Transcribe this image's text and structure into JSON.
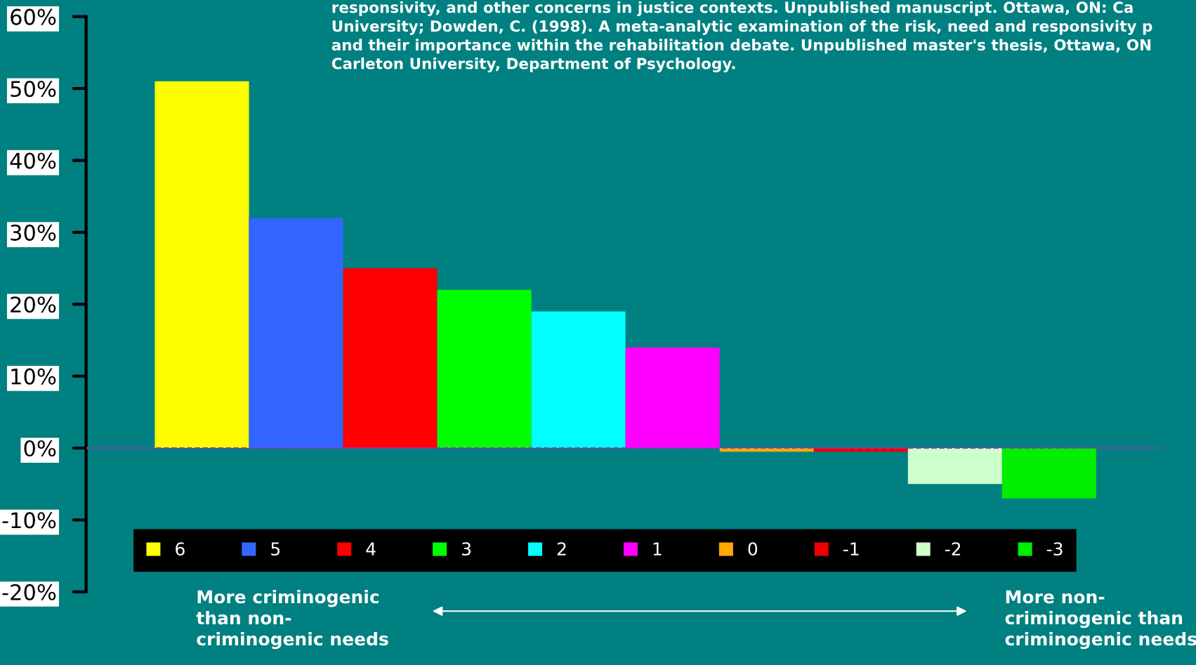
{
  "chart_data": {
    "type": "bar",
    "categories": [
      null
    ],
    "series": [
      {
        "name": "6",
        "color": "#ffff00",
        "values": [
          51
        ]
      },
      {
        "name": "5",
        "color": "#3366ff",
        "values": [
          32
        ]
      },
      {
        "name": "4",
        "color": "#ff0000",
        "values": [
          25
        ]
      },
      {
        "name": "3",
        "color": "#00ff00",
        "values": [
          22
        ]
      },
      {
        "name": "2",
        "color": "#00ffff",
        "values": [
          19
        ]
      },
      {
        "name": "1",
        "color": "#ff00ff",
        "values": [
          14
        ]
      },
      {
        "name": "0",
        "color": "#ffaa00",
        "values": [
          -0.5
        ]
      },
      {
        "name": "-1",
        "color": "#ee0000",
        "values": [
          -0.5
        ]
      },
      {
        "name": "-2",
        "color": "#ccffcc",
        "values": [
          -5
        ]
      },
      {
        "name": "-3",
        "color": "#00ee00",
        "values": [
          -7
        ]
      }
    ],
    "ylim": [
      -20,
      60
    ],
    "yticks": [
      {
        "value": -20,
        "label": "-20%"
      },
      {
        "value": -10,
        "label": "-10%"
      },
      {
        "value": 0,
        "label": "0%"
      },
      {
        "value": 10,
        "label": "10%"
      },
      {
        "value": 20,
        "label": "20%"
      },
      {
        "value": 30,
        "label": "30%"
      },
      {
        "value": 40,
        "label": "40%"
      },
      {
        "value": 50,
        "label": "50%"
      },
      {
        "value": 60,
        "label": "60%"
      }
    ],
    "tick_labels": "y",
    "grid": false,
    "legend": "bottom",
    "ref_lines": [
      {
        "axis": "y",
        "value": 0,
        "color": "#9933cc",
        "line_style": "dashed"
      }
    ],
    "annotations": [
      "responsivity, and other concerns in justice contexts. Unpublished manuscript. Ottawa, ON: Ca\nUniversity; Dowden, C. (1998). A meta-analytic examination of the risk, need and responsivity p\nand their importance within the rehabilitation debate. Unpublished master's thesis, Ottawa, ON\nCarleton University, Department of Psychology.",
      "More criminogenic\nthan non-\ncriminogenic needs",
      "More non-\ncriminogenic than\ncriminogenic needs"
    ]
  }
}
